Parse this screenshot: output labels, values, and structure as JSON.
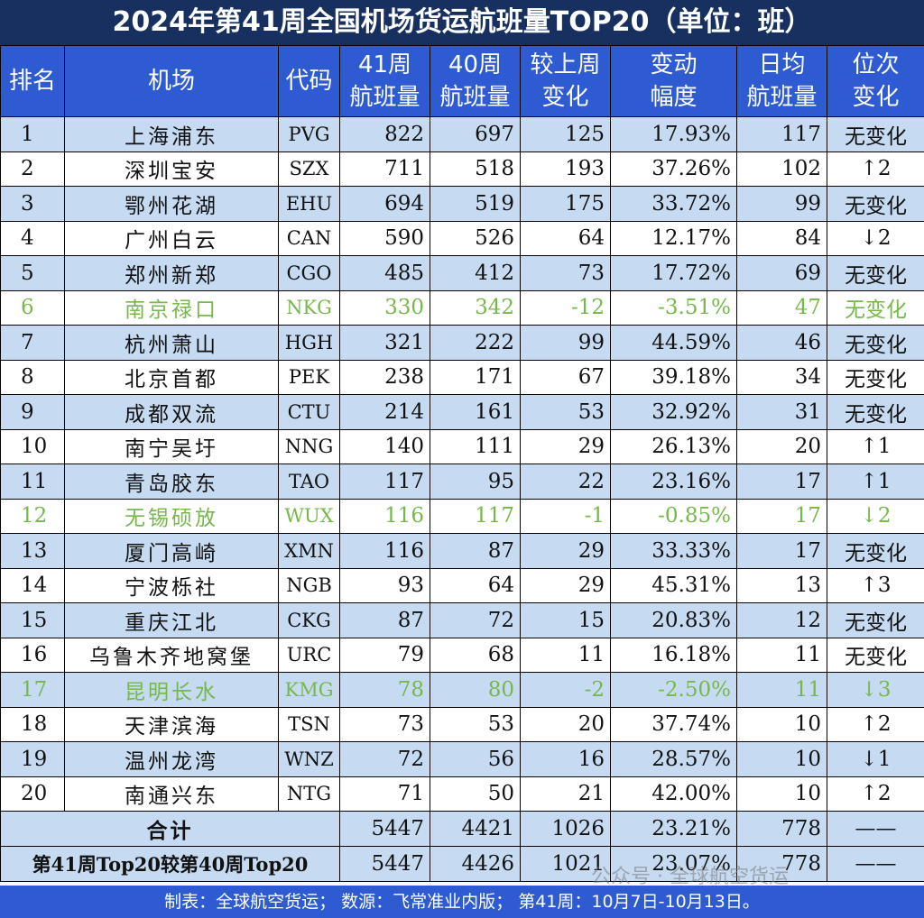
{
  "title": "2024年第41周全国机场货运航班量TOP20（单位：班）",
  "footer": "制表：全球航空货运；  数源：飞常准业内版；  第41周：10月7日-10月13日。",
  "watermark": "公众号 · 全球航空货运",
  "colors": {
    "header_bg": "#2e5bd1",
    "title_bg": "#17305f",
    "row_alt": "#c6daf2",
    "negative_text": "#76b84a"
  },
  "chart_data": {
    "type": "table",
    "title": "2024年第41周全国机场货运航班量TOP20（单位：班）",
    "headers": [
      "排名",
      "机场",
      "代码",
      "41周\n航班量",
      "40周\n航班量",
      "较上周\n变化",
      "变动\n幅度",
      "日均\n航班量",
      "位次\n变化"
    ],
    "rows": [
      [
        "1",
        "上海浦东",
        "PVG",
        "822",
        "697",
        "125",
        "17.93%",
        "117",
        "无变化"
      ],
      [
        "2",
        "深圳宝安",
        "SZX",
        "711",
        "518",
        "193",
        "37.26%",
        "102",
        "↑2"
      ],
      [
        "3",
        "鄂州花湖",
        "EHU",
        "694",
        "519",
        "175",
        "33.72%",
        "99",
        "无变化"
      ],
      [
        "4",
        "广州白云",
        "CAN",
        "590",
        "526",
        "64",
        "12.17%",
        "84",
        "↓2"
      ],
      [
        "5",
        "郑州新郑",
        "CGO",
        "485",
        "412",
        "73",
        "17.72%",
        "69",
        "无变化"
      ],
      [
        "6",
        "南京禄口",
        "NKG",
        "330",
        "342",
        "-12",
        "-3.51%",
        "47",
        "无变化"
      ],
      [
        "7",
        "杭州萧山",
        "HGH",
        "321",
        "222",
        "99",
        "44.59%",
        "46",
        "无变化"
      ],
      [
        "8",
        "北京首都",
        "PEK",
        "238",
        "171",
        "67",
        "39.18%",
        "34",
        "无变化"
      ],
      [
        "9",
        "成都双流",
        "CTU",
        "214",
        "161",
        "53",
        "32.92%",
        "31",
        "无变化"
      ],
      [
        "10",
        "南宁吴圩",
        "NNG",
        "140",
        "111",
        "29",
        "26.13%",
        "20",
        "↑1"
      ],
      [
        "11",
        "青岛胶东",
        "TAO",
        "117",
        "95",
        "22",
        "23.16%",
        "17",
        "↑1"
      ],
      [
        "12",
        "无锡硕放",
        "WUX",
        "116",
        "117",
        "-1",
        "-0.85%",
        "17",
        "↓2"
      ],
      [
        "13",
        "厦门高崎",
        "XMN",
        "116",
        "87",
        "29",
        "33.33%",
        "17",
        "无变化"
      ],
      [
        "14",
        "宁波栎社",
        "NGB",
        "93",
        "64",
        "29",
        "45.31%",
        "13",
        "↑3"
      ],
      [
        "15",
        "重庆江北",
        "CKG",
        "87",
        "72",
        "15",
        "20.83%",
        "12",
        "无变化"
      ],
      [
        "16",
        "乌鲁木齐地窝堡",
        "URC",
        "79",
        "68",
        "11",
        "16.18%",
        "11",
        "无变化"
      ],
      [
        "17",
        "昆明长水",
        "KMG",
        "78",
        "80",
        "-2",
        "-2.50%",
        "11",
        "↓3"
      ],
      [
        "18",
        "天津滨海",
        "TSN",
        "73",
        "53",
        "20",
        "37.74%",
        "10",
        "↑2"
      ],
      [
        "19",
        "温州龙湾",
        "WNZ",
        "72",
        "56",
        "16",
        "28.57%",
        "10",
        "↓1"
      ],
      [
        "20",
        "南通兴东",
        "NTG",
        "71",
        "50",
        "21",
        "42.00%",
        "10",
        "↑2"
      ]
    ],
    "negative_rows": [
      6,
      12,
      17
    ],
    "totals": [
      {
        "label": "合计",
        "values": [
          "5447",
          "4421",
          "1026",
          "23.21%",
          "778",
          "——"
        ]
      },
      {
        "label": "第41周Top20较第40周Top20",
        "values": [
          "5447",
          "4426",
          "1021",
          "23.07%",
          "778",
          "——"
        ]
      }
    ]
  }
}
